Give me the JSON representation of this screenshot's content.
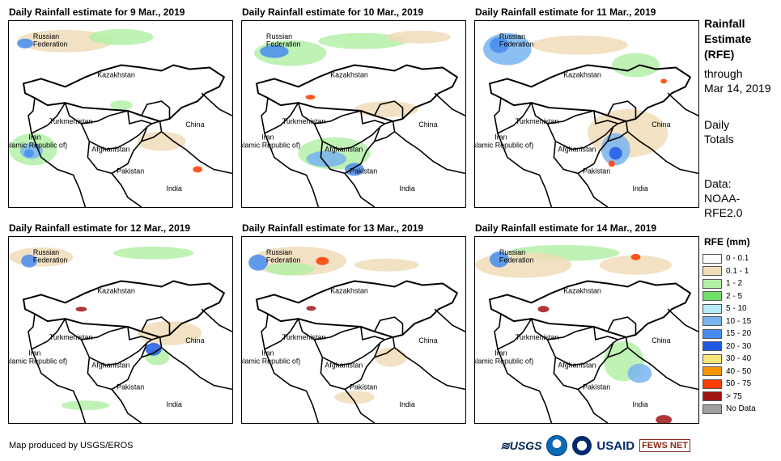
{
  "panels": [
    {
      "title": "Daily Rainfall estimate for 9 Mar., 2019"
    },
    {
      "title": "Daily Rainfall estimate for 10 Mar., 2019"
    },
    {
      "title": "Daily Rainfall estimate for 11 Mar., 2019"
    },
    {
      "title": "Daily Rainfall estimate for 12 Mar., 2019"
    },
    {
      "title": "Daily Rainfall estimate for 13 Mar., 2019"
    },
    {
      "title": "Daily Rainfall estimate for 14 Mar., 2019"
    }
  ],
  "country_labels": {
    "russia": "Russian\nFederation",
    "kazakhstan": "Kazakhstan",
    "turkmenistan": "Turkmenistan",
    "iran": "Iran\n(Islamic Republic of)",
    "afghanistan": "Afghanistan",
    "pakistan": "Pakistan",
    "china": "China",
    "india": "India"
  },
  "side": {
    "title": "Rainfall\nEstimate\n(RFE)",
    "through": "through",
    "date": "Mar 14, 2019",
    "totals": "Daily\nTotals",
    "data_label": "Data:",
    "source": "NOAA-\nRFE2.0"
  },
  "legend": {
    "title": "RFE (mm)",
    "items": [
      {
        "label": "0 - 0.1",
        "color": "#ffffff"
      },
      {
        "label": "0.1 - 1",
        "color": "#f0dcb9"
      },
      {
        "label": "1 - 2",
        "color": "#b4f0a8"
      },
      {
        "label": "2 - 5",
        "color": "#6ee068"
      },
      {
        "label": "5 - 10",
        "color": "#b4ecfa"
      },
      {
        "label": "10 - 15",
        "color": "#78b4f0"
      },
      {
        "label": "15 - 20",
        "color": "#468cf0"
      },
      {
        "label": "20 - 30",
        "color": "#1e5ae6"
      },
      {
        "label": "30 - 40",
        "color": "#fae678"
      },
      {
        "label": "40 - 50",
        "color": "#fa9600"
      },
      {
        "label": "50 - 75",
        "color": "#fa3c00"
      },
      {
        "label": "> 75",
        "color": "#a01414"
      },
      {
        "label": "No Data",
        "color": "#a0a0a0"
      }
    ]
  },
  "footer": {
    "credit": "Map produced by USGS/EROS",
    "logos": {
      "usgs": "≋USGS",
      "usaid": "USAID",
      "fews": "FEWS NET"
    }
  }
}
